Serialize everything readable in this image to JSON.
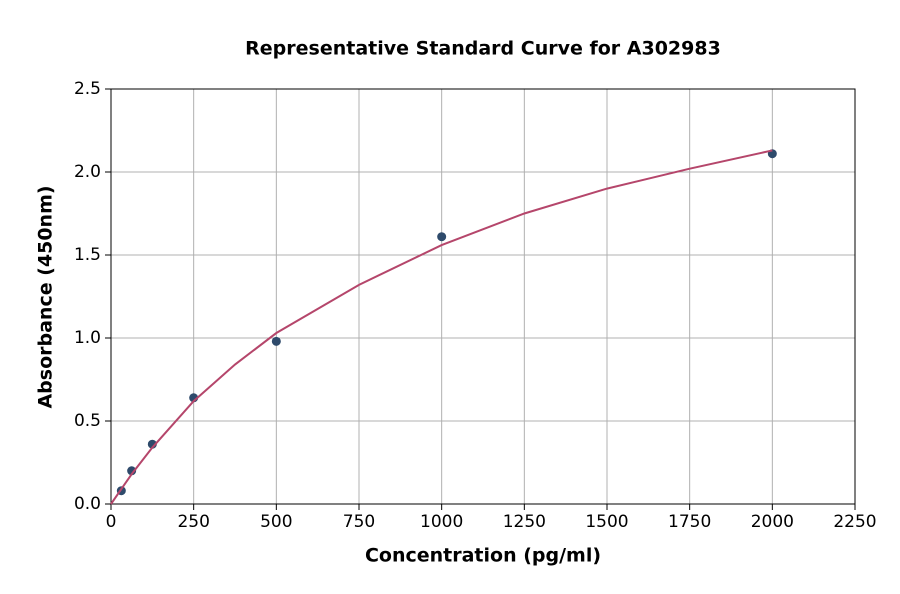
{
  "chart_data": {
    "type": "scatter",
    "title": "Representative Standard Curve for A302983",
    "x_label": "Concentration (pg/ml)",
    "y_label": "Absorbance (450nm)",
    "xlim": [
      0,
      2250
    ],
    "xticks": [
      0,
      250,
      500,
      750,
      1000,
      1250,
      1500,
      1750,
      2000,
      2250
    ],
    "ylim": [
      0,
      2.5
    ],
    "yticks": [
      {
        "value": 0,
        "label": "0.0"
      },
      0.5,
      {
        "value": 1,
        "label": "1.0"
      },
      1.5,
      {
        "value": 2,
        "label": "2.0"
      },
      2.5
    ],
    "grid": true,
    "series": [
      {
        "type": "scatter",
        "color": "#2e4a6b",
        "x": [
          31.25,
          62.5,
          125,
          250,
          500,
          1000,
          2000
        ],
        "values": [
          0.08,
          0.2,
          0.36,
          0.64,
          0.98,
          1.61,
          2.11
        ]
      },
      {
        "type": "line",
        "color": "#b5466b",
        "x": [
          0,
          62.5,
          125,
          250,
          375,
          500,
          750,
          1000,
          1250,
          1500,
          1750,
          2000
        ],
        "values": [
          0,
          0.18,
          0.34,
          0.62,
          0.84,
          1.03,
          1.32,
          1.56,
          1.75,
          1.9,
          2.02,
          2.13
        ]
      }
    ]
  }
}
